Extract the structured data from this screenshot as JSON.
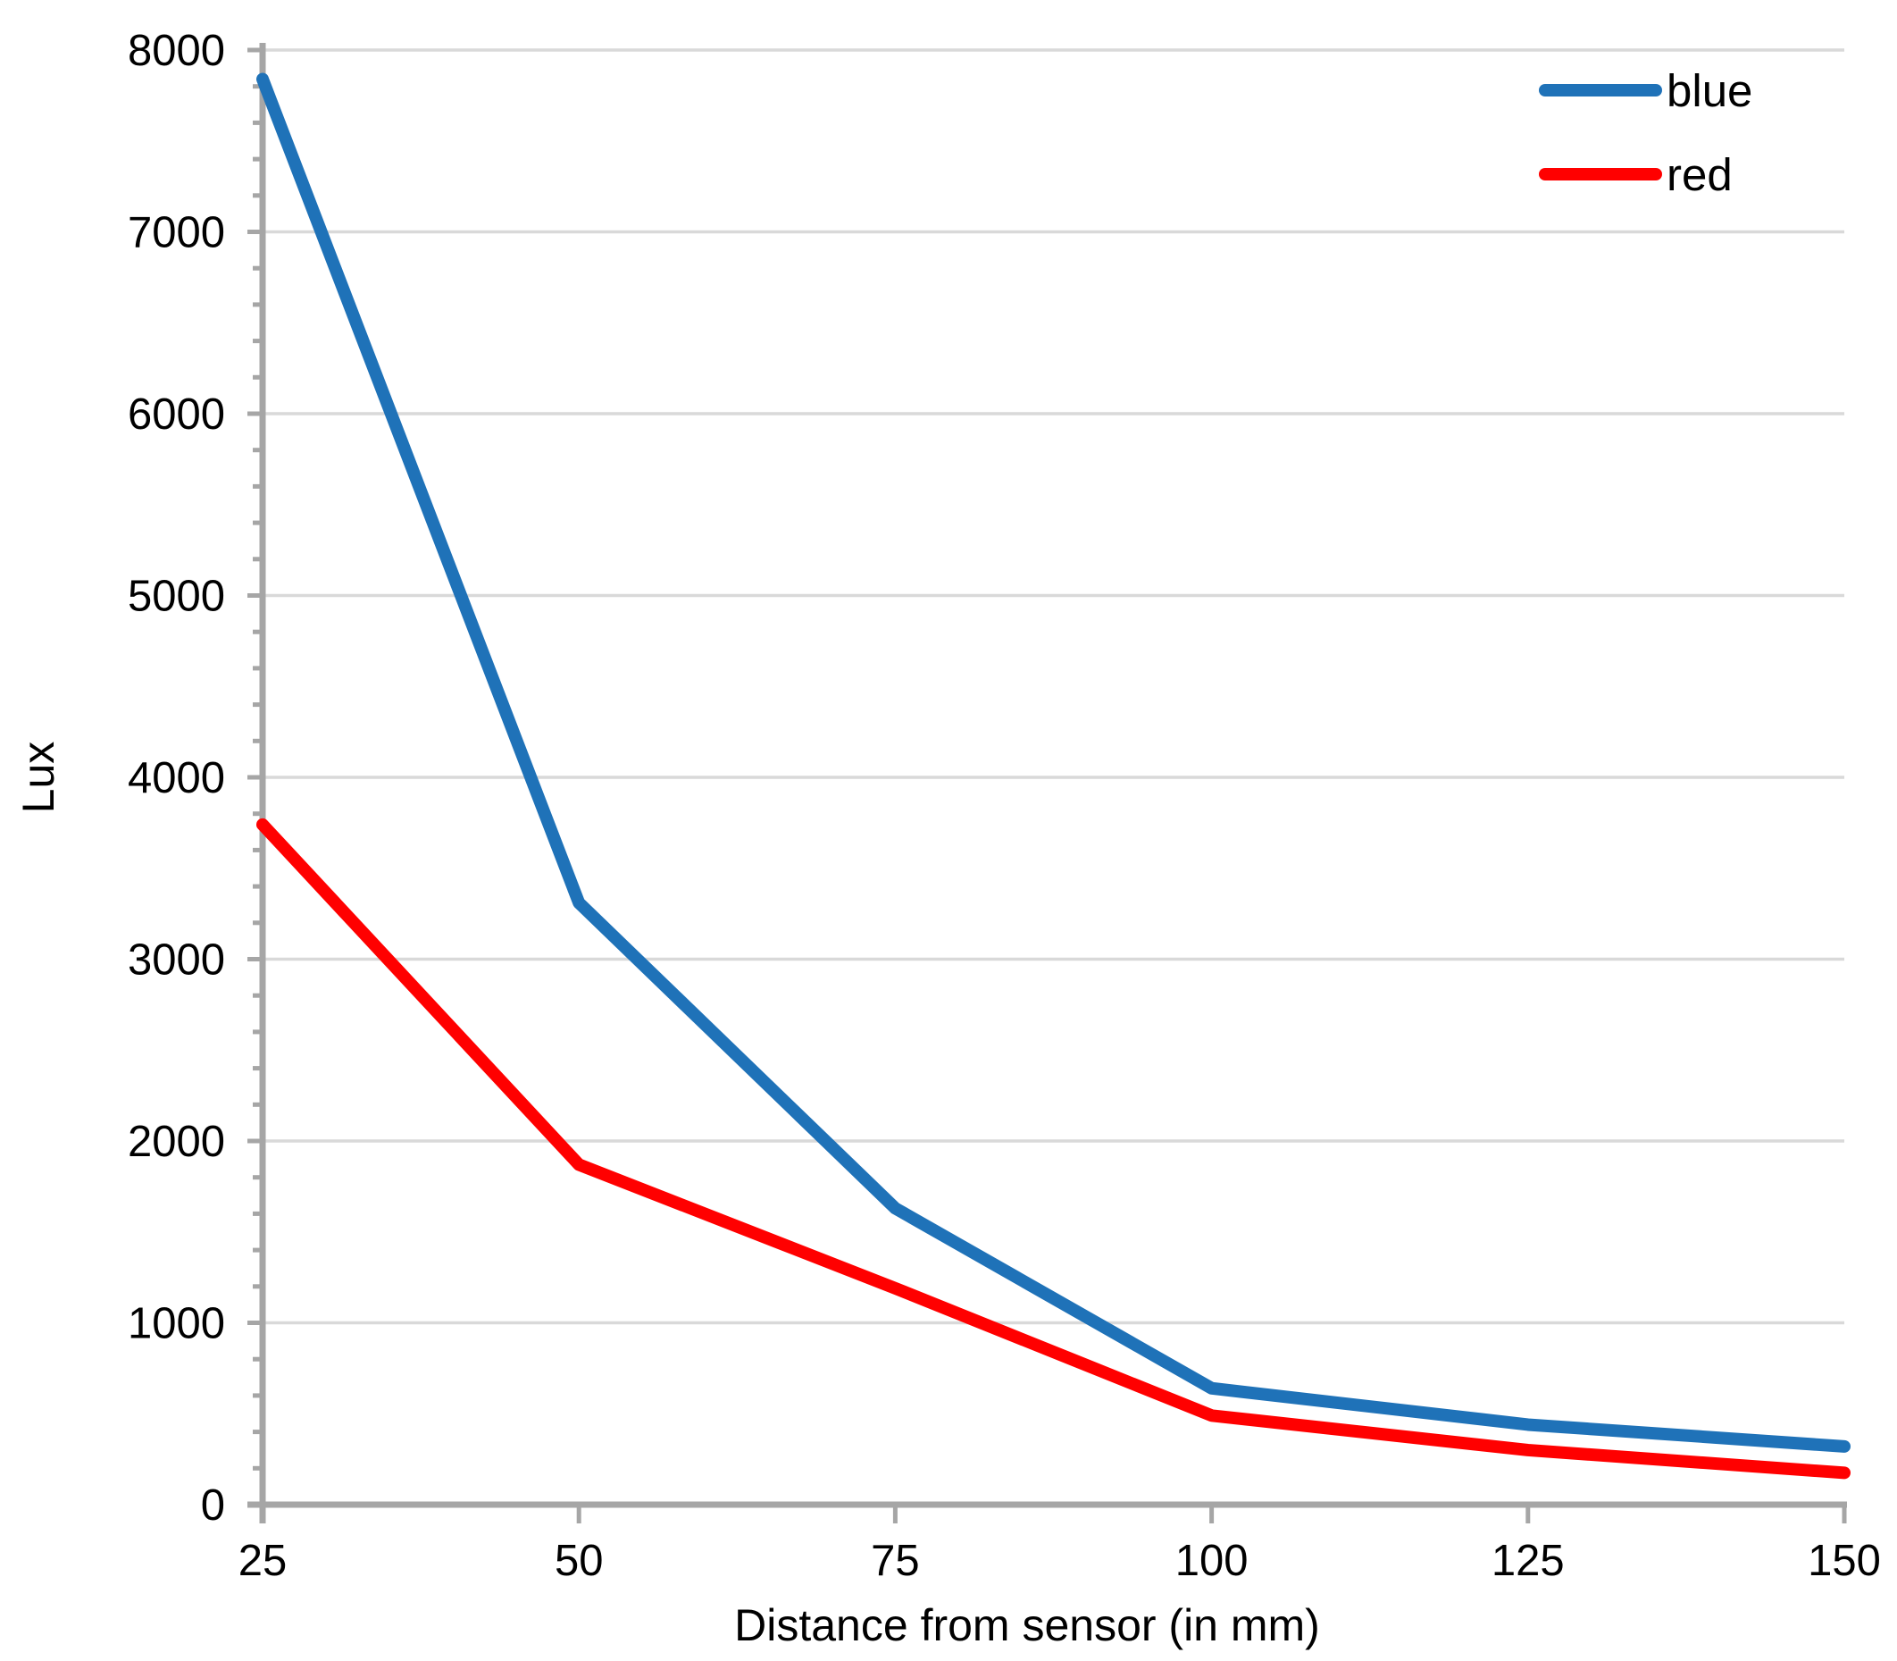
{
  "chart_data": {
    "type": "line",
    "x": [
      25,
      50,
      75,
      100,
      125,
      150
    ],
    "series": [
      {
        "name": "blue",
        "color": "#1F72B8",
        "values": [
          7840,
          3310,
          1630,
          640,
          440,
          320
        ]
      },
      {
        "name": "red",
        "color": "#FF0000",
        "values": [
          3740,
          1870,
          1190,
          490,
          300,
          175
        ]
      }
    ],
    "title": "",
    "xlabel": "Distance from sensor (in mm)",
    "ylabel": "Lux",
    "xlim": [
      25,
      150
    ],
    "ylim": [
      0,
      8000
    ],
    "x_ticks": [
      25,
      50,
      75,
      100,
      125,
      150
    ],
    "x_tick_labels": [
      "25",
      "50",
      "75",
      "100",
      "125",
      "150"
    ],
    "y_ticks": [
      0,
      1000,
      2000,
      3000,
      4000,
      5000,
      6000,
      7000,
      8000
    ],
    "y_tick_labels": [
      "0",
      "1000",
      "2000",
      "3000",
      "4000",
      "5000",
      "6000",
      "7000",
      "8000"
    ],
    "y_major_step": 1000,
    "y_minor_step": 200,
    "grid": "horizontal-major-only",
    "legend_position": "top-right",
    "legend_labels": [
      "blue",
      "red"
    ]
  },
  "styles": {
    "background": "#FFFFFF",
    "axis_color": "#A6A6A6",
    "gridline_color": "#D9D9D9",
    "text_color": "#000000",
    "series_blue": "#1F72B8",
    "series_red": "#FF0000"
  }
}
